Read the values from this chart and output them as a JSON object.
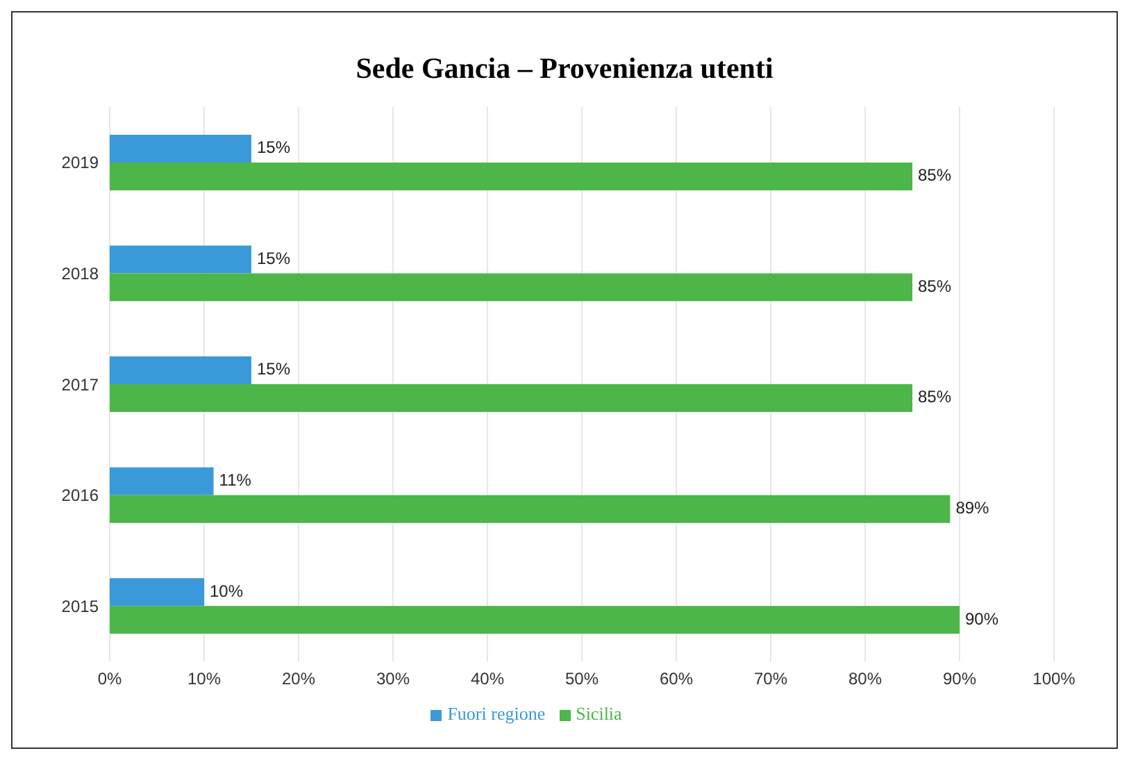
{
  "chart_data": {
    "type": "bar",
    "orientation": "horizontal",
    "title": "Sede Gancia – Provenienza utenti",
    "categories": [
      "2019",
      "2018",
      "2017",
      "2016",
      "2015"
    ],
    "series": [
      {
        "name": "Fuori regione",
        "color": "#3a9ad9",
        "values": [
          15,
          15,
          15,
          11,
          10
        ],
        "value_labels": [
          "15%",
          "15%",
          "15%",
          "11%",
          "10%"
        ]
      },
      {
        "name": "Sicilia",
        "color": "#4cb648",
        "values": [
          85,
          85,
          85,
          89,
          90
        ],
        "value_labels": [
          "85%",
          "85%",
          "85%",
          "89%",
          "90%"
        ]
      }
    ],
    "xlim": [
      0,
      100
    ],
    "xticks": [
      {
        "value": 0,
        "label": "0%"
      },
      {
        "value": 10,
        "label": "10%"
      },
      {
        "value": 20,
        "label": "20%"
      },
      {
        "value": 30,
        "label": "30%"
      },
      {
        "value": 40,
        "label": "40%"
      },
      {
        "value": 50,
        "label": "50%"
      },
      {
        "value": 60,
        "label": "60%"
      },
      {
        "value": 70,
        "label": "70%"
      },
      {
        "value": 80,
        "label": "80%"
      },
      {
        "value": 90,
        "label": "90%"
      },
      {
        "value": 100,
        "label": "100%"
      }
    ],
    "grid": "x",
    "legend": "bottom"
  }
}
